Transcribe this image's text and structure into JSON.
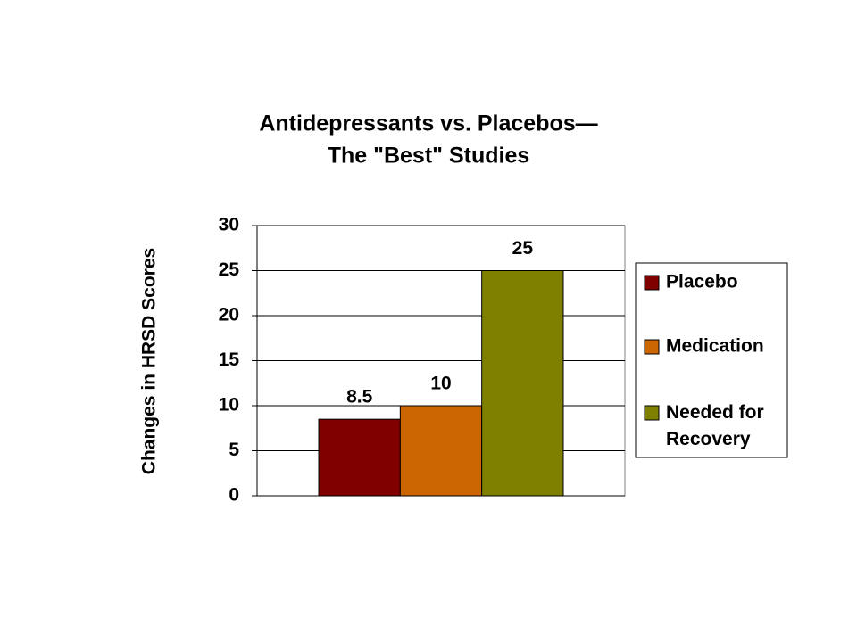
{
  "chart_data": {
    "type": "bar",
    "title": [
      "Antidepressants vs. Placebos—",
      "The \"Best\" Studies"
    ],
    "y_label": "Changes in HRSD Scores",
    "categories": [
      null
    ],
    "series": [
      {
        "name": "Placebo",
        "color": "#800000",
        "values": [
          8.5
        ]
      },
      {
        "name": "Medication",
        "color": "#cc6600",
        "values": [
          10
        ]
      },
      {
        "name": "Needed for Recovery",
        "color": "#808000",
        "values": [
          25
        ]
      }
    ],
    "ylim": [
      0,
      30
    ],
    "yticks": [
      0,
      5,
      10,
      15,
      20,
      25,
      30
    ],
    "grid": true,
    "legend": "right"
  }
}
